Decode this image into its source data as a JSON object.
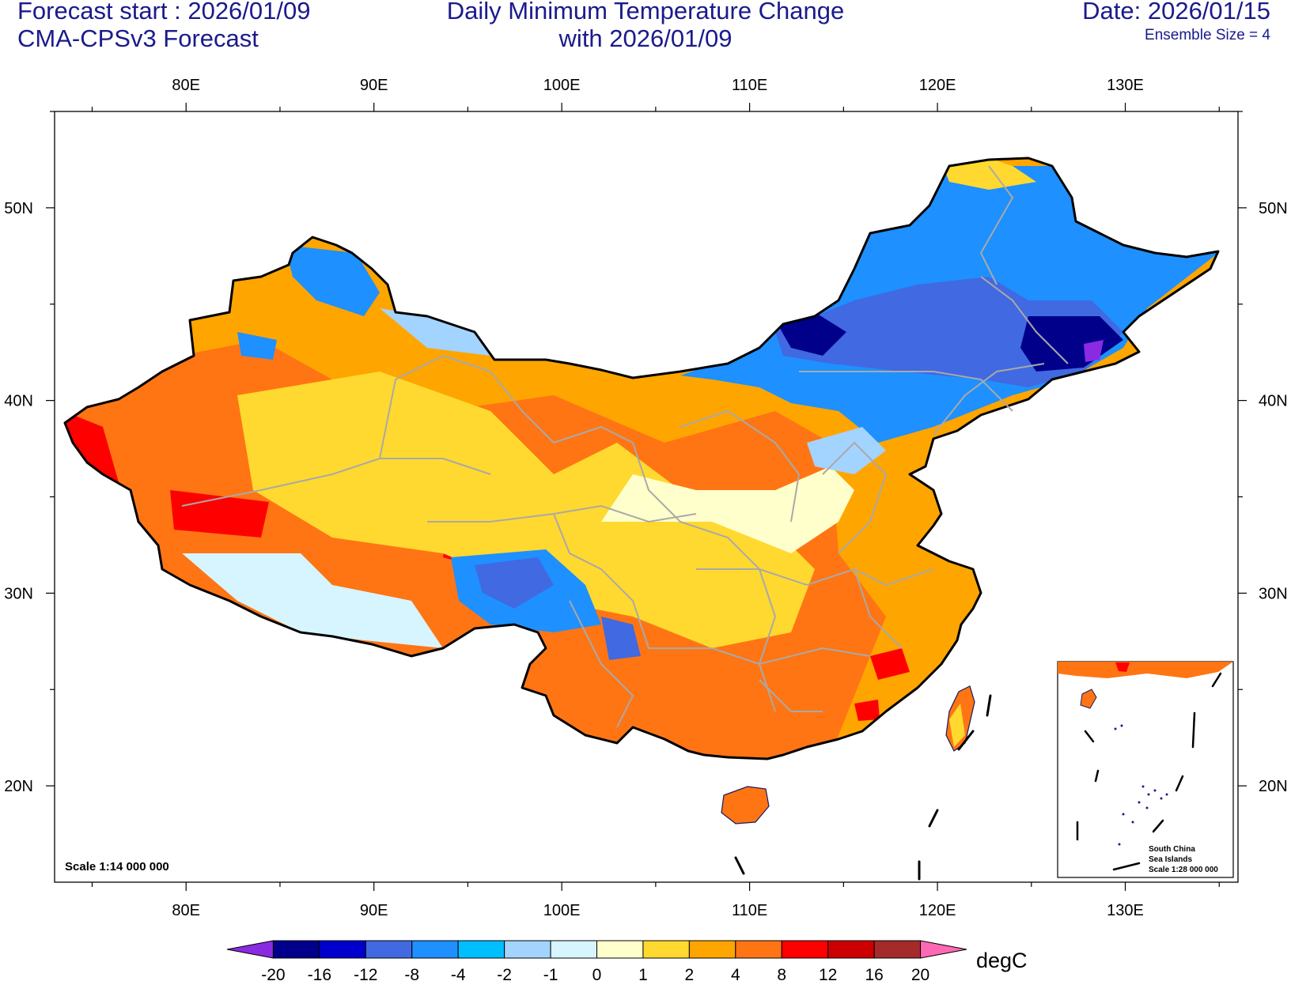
{
  "header": {
    "forecast_start": "Forecast start : 2026/01/09",
    "model": "CMA-CPSv3 Forecast",
    "title_line1": "Daily Minimum Temperature Change",
    "title_line2": "with 2026/01/09",
    "date": "Date: 2026/01/15",
    "ensemble": "Ensemble Size = 4"
  },
  "map": {
    "scale_note": "Scale 1:14 000 000",
    "inset_note_1": "South China",
    "inset_note_2": "Sea Islands",
    "inset_note_3": "Scale 1:28 000 000"
  },
  "chart_data": {
    "type": "heatmap",
    "title": "Daily Minimum Temperature Change with 2026/01/09",
    "x_ticks": [
      "80E",
      "90E",
      "100E",
      "110E",
      "120E",
      "130E"
    ],
    "y_ticks": [
      "50N",
      "40N",
      "30N",
      "20N"
    ],
    "x_range_deg": [
      73,
      136
    ],
    "y_range_deg": [
      15,
      55
    ],
    "colorbar": {
      "unit": "degC",
      "levels": [
        "-20",
        "-16",
        "-12",
        "-8",
        "-4",
        "-2",
        "-1",
        "0",
        "1",
        "2",
        "4",
        "8",
        "12",
        "16",
        "20"
      ],
      "colors": [
        "#8a2be2",
        "#00008b",
        "#0000cd",
        "#4169e1",
        "#1e90ff",
        "#00bfff",
        "#a3d3ff",
        "#d6f5ff",
        "#ffffcc",
        "#ffd92f",
        "#ffa500",
        "#ff7514",
        "#ff0000",
        "#cc0000",
        "#a52a2a",
        "#ff69b4"
      ]
    }
  }
}
